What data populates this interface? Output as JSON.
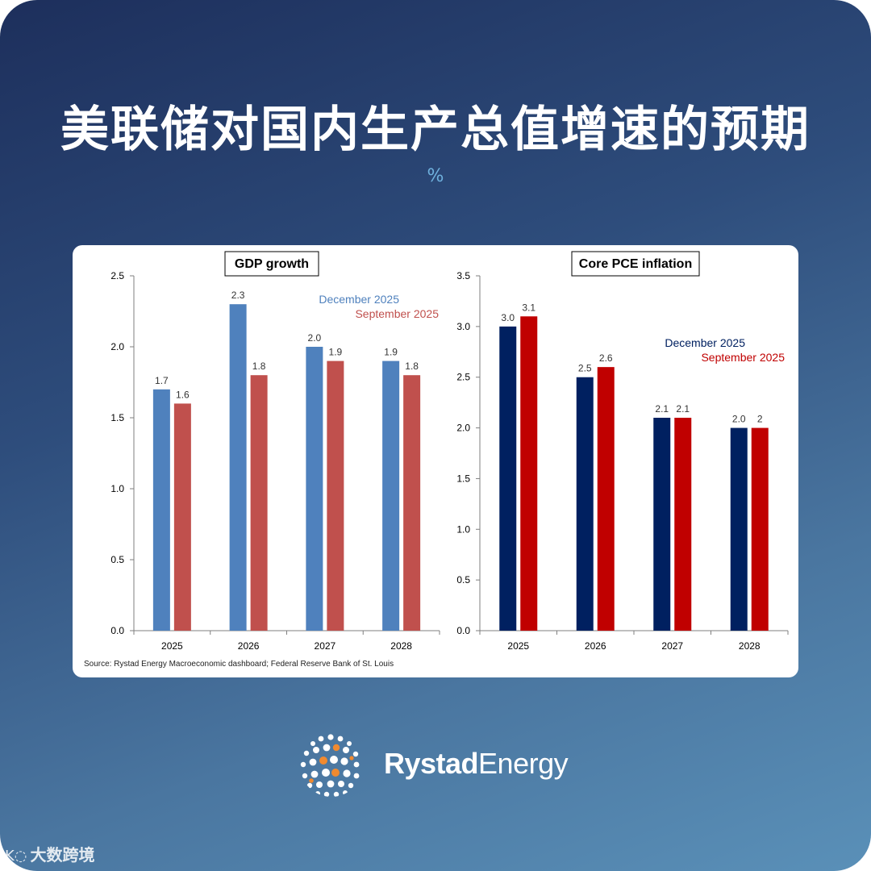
{
  "title": "美联储对国内生产总值增速的预期",
  "unit": "%",
  "source": "Source: Rystad Energy Macroeconomic dashboard; Federal Reserve Bank of St. Louis",
  "brand": {
    "part1": "Rystad",
    "part2": "Energy"
  },
  "watermark": {
    "mark": "K◌",
    "text": "大数跨境"
  },
  "chart_data": [
    {
      "type": "bar",
      "title": "GDP growth",
      "categories": [
        "2025",
        "2026",
        "2027",
        "2028"
      ],
      "ylim": [
        0,
        2.5
      ],
      "yticks": [
        "0.0",
        "0.5",
        "1.0",
        "1.5",
        "2.0",
        "2.5"
      ],
      "series": [
        {
          "name": "December 2025",
          "color": "#4f81bd",
          "values": [
            1.7,
            2.3,
            2.0,
            1.9
          ],
          "labels": [
            "1.7",
            "2.3",
            "2.0",
            "1.9"
          ]
        },
        {
          "name": "September 2025",
          "color": "#c0504d",
          "values": [
            1.6,
            1.8,
            1.9,
            1.8
          ],
          "labels": [
            "1.6",
            "1.8",
            "1.9",
            "1.8"
          ]
        }
      ],
      "legend": "top-right",
      "grid": false
    },
    {
      "type": "bar",
      "title": "Core PCE inflation",
      "categories": [
        "2025",
        "2026",
        "2027",
        "2028"
      ],
      "ylim": [
        0,
        3.5
      ],
      "yticks": [
        "0.0",
        "0.5",
        "1.0",
        "1.5",
        "2.0",
        "2.5",
        "3.0",
        "3.5"
      ],
      "series": [
        {
          "name": "December 2025",
          "color": "#002060",
          "values": [
            3.0,
            2.5,
            2.1,
            2.0
          ],
          "labels": [
            "3.0",
            "2.5",
            "2.1",
            "2.0"
          ]
        },
        {
          "name": "September 2025",
          "color": "#c00000",
          "values": [
            3.1,
            2.6,
            2.1,
            2.0
          ],
          "labels": [
            "3.1",
            "2.6",
            "2.1",
            "2"
          ]
        }
      ],
      "legend": "top-right",
      "grid": false
    }
  ]
}
